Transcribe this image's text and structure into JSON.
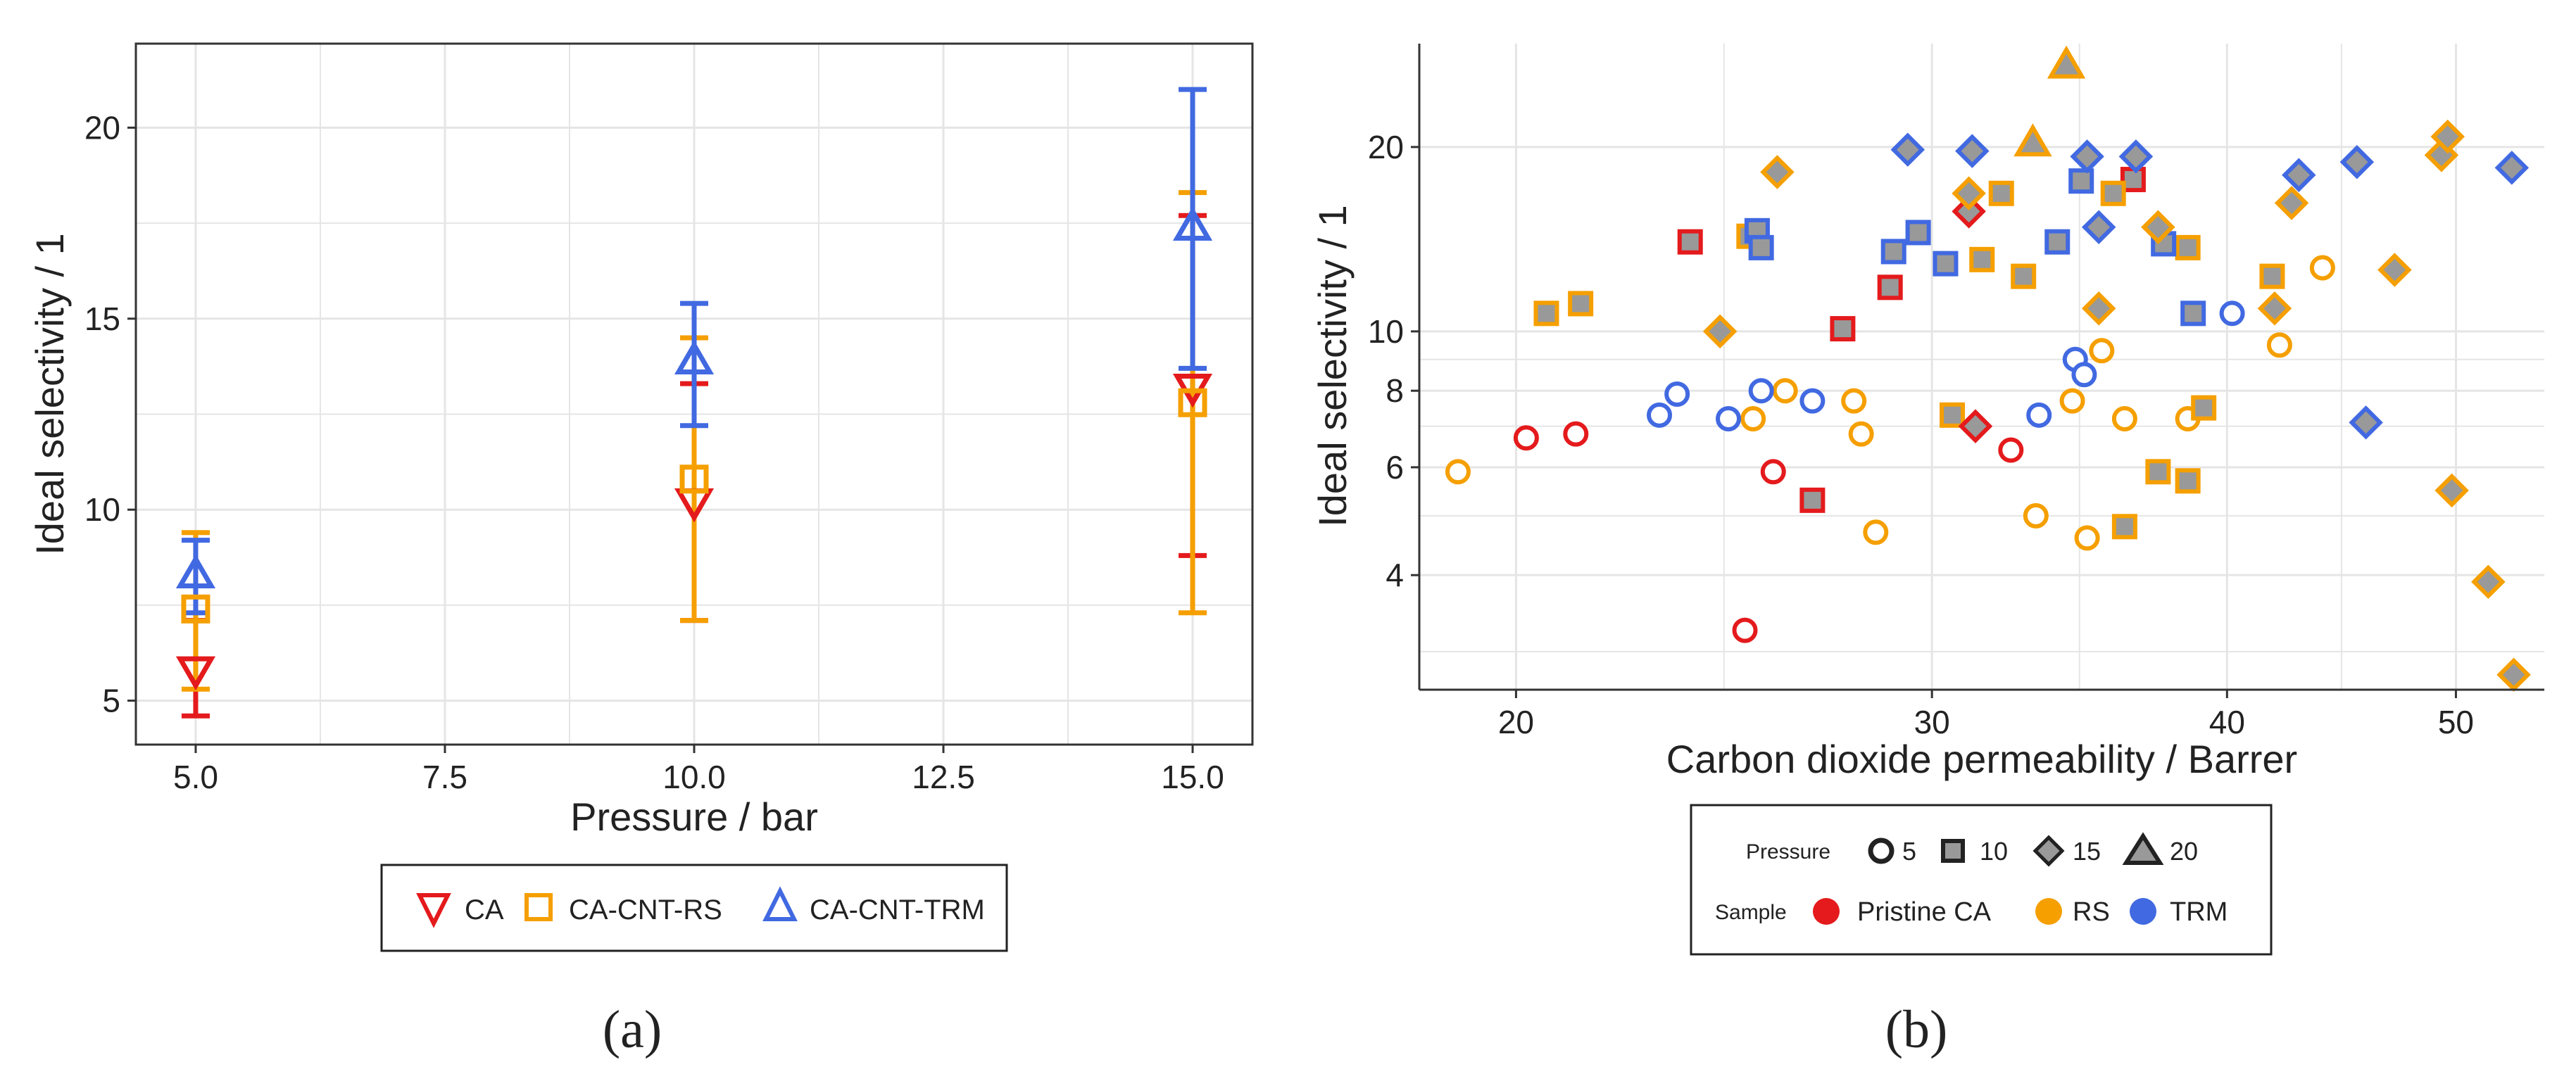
{
  "colors": {
    "CA": "#E41A1C",
    "RS": "#F59F00",
    "TRM": "#4169E1",
    "marker_fill": "#999999",
    "grid": "#e5e5e5",
    "axis_text": "#444444",
    "outline": "#222222"
  },
  "panel_labels": {
    "a": "(a)",
    "b": "(b)"
  },
  "chart_data": [
    {
      "type": "scatter",
      "xlabel": "Pressure / bar",
      "ylabel": "Ideal selectivity / 1",
      "xlim": [
        4.4,
        15.6
      ],
      "ylim": [
        3.85,
        22.2
      ],
      "xticks": [
        5.0,
        7.5,
        10.0,
        12.5,
        15.0
      ],
      "xtick_labels": [
        "5.0",
        "7.5",
        "10.0",
        "12.5",
        "15.0"
      ],
      "yticks": [
        5,
        10,
        15,
        20
      ],
      "ytick_labels": [
        "5",
        "10",
        "15",
        "20"
      ],
      "grid": true,
      "legend": {
        "position": "bottom",
        "entries": [
          {
            "label": "CA",
            "marker": "triangle-down",
            "color_key": "CA"
          },
          {
            "label": "CA-CNT-RS",
            "marker": "square",
            "color_key": "RS"
          },
          {
            "label": "CA-CNT-TRM",
            "marker": "triangle-up",
            "color_key": "TRM"
          }
        ]
      },
      "series": [
        {
          "name": "CA",
          "color_key": "CA",
          "marker": "triangle-down",
          "points": [
            {
              "x": 5,
              "y": 5.8,
              "ymin": 4.6,
              "ymax": 7.1
            },
            {
              "x": 10,
              "y": 10.2,
              "ymin": 7.1,
              "ymax": 13.3
            },
            {
              "x": 15,
              "y": 13.2,
              "ymin": 8.8,
              "ymax": 17.7
            }
          ]
        },
        {
          "name": "CA-CNT-RS",
          "color_key": "RS",
          "marker": "square",
          "points": [
            {
              "x": 5,
              "y": 7.4,
              "ymin": 5.3,
              "ymax": 9.4
            },
            {
              "x": 10,
              "y": 10.8,
              "ymin": 7.1,
              "ymax": 14.5
            },
            {
              "x": 15,
              "y": 12.8,
              "ymin": 7.3,
              "ymax": 18.3
            }
          ]
        },
        {
          "name": "CA-CNT-TRM",
          "color_key": "TRM",
          "marker": "triangle-up",
          "points": [
            {
              "x": 5,
              "y": 8.3,
              "ymin": 7.3,
              "ymax": 9.2
            },
            {
              "x": 10,
              "y": 13.9,
              "ymin": 12.2,
              "ymax": 15.4
            },
            {
              "x": 15,
              "y": 17.4,
              "ymin": 13.7,
              "ymax": 21.0
            }
          ]
        }
      ]
    },
    {
      "type": "scatter",
      "xscale": "log",
      "yscale": "log",
      "xlabel": "Carbon dioxide permeability / Barrer",
      "ylabel": "Ideal selectivity / 1",
      "xlim": [
        18.2,
        54.5
      ],
      "ylim": [
        2.6,
        29.5
      ],
      "xticks": [
        20,
        30,
        40,
        50
      ],
      "xtick_labels": [
        "20",
        "30",
        "40",
        "50"
      ],
      "yticks": [
        4,
        6,
        8,
        10,
        20
      ],
      "ytick_labels": [
        "4",
        "6",
        "8",
        "10",
        "20"
      ],
      "minor_yticks": [
        3,
        5,
        7,
        9
      ],
      "grid": true,
      "legend": {
        "position": "bottom",
        "pressure_title": "Pressure",
        "pressure_entries": [
          {
            "label": "5",
            "shape": "circle"
          },
          {
            "label": "10",
            "shape": "square"
          },
          {
            "label": "15",
            "shape": "diamond"
          },
          {
            "label": "20",
            "shape": "triangle"
          }
        ],
        "sample_title": "Sample",
        "sample_entries": [
          {
            "label": "Pristine CA",
            "color_key": "CA"
          },
          {
            "label": "RS",
            "color_key": "RS"
          },
          {
            "label": "TRM",
            "color_key": "TRM"
          }
        ]
      },
      "series": [
        {
          "name": "Pristine CA / 5 bar",
          "sample": "CA",
          "pressure": 5,
          "points": [
            [
              20.2,
              6.7
            ],
            [
              21.2,
              6.8
            ],
            [
              25.7,
              5.9
            ],
            [
              25.0,
              3.25
            ],
            [
              32.4,
              6.4
            ]
          ]
        },
        {
          "name": "Pristine CA / 10 bar",
          "sample": "CA",
          "pressure": 10,
          "points": [
            [
              23.7,
              14.0
            ],
            [
              26.7,
              5.3
            ],
            [
              27.5,
              10.1
            ],
            [
              28.8,
              11.8
            ],
            [
              36.5,
              17.7
            ]
          ]
        },
        {
          "name": "Pristine CA / 15 bar",
          "sample": "CA",
          "pressure": 15,
          "points": [
            [
              31.1,
              15.7
            ],
            [
              31.3,
              7.0
            ]
          ]
        },
        {
          "name": "RS / 5 bar",
          "sample": "RS",
          "pressure": 5,
          "points": [
            [
              18.9,
              5.9
            ],
            [
              25.2,
              7.2
            ],
            [
              26.0,
              8.0
            ],
            [
              27.8,
              7.7
            ],
            [
              28.0,
              6.8
            ],
            [
              28.4,
              4.7
            ],
            [
              33.2,
              5.0
            ],
            [
              34.4,
              7.7
            ],
            [
              34.9,
              4.6
            ],
            [
              35.4,
              9.3
            ],
            [
              36.2,
              7.2
            ],
            [
              38.5,
              7.2
            ],
            [
              42.1,
              9.5
            ],
            [
              43.9,
              12.7
            ]
          ]
        },
        {
          "name": "RS / 10 bar",
          "sample": "RS",
          "pressure": 10,
          "points": [
            [
              20.6,
              10.7
            ],
            [
              21.3,
              11.1
            ],
            [
              25.1,
              14.3
            ],
            [
              30.6,
              7.3
            ],
            [
              31.5,
              13.1
            ],
            [
              32.1,
              16.8
            ],
            [
              32.8,
              12.3
            ],
            [
              35.8,
              16.8
            ],
            [
              36.2,
              4.8
            ],
            [
              37.4,
              5.9
            ],
            [
              38.5,
              13.7
            ],
            [
              38.5,
              5.7
            ],
            [
              39.1,
              7.5
            ],
            [
              41.8,
              12.3
            ]
          ]
        },
        {
          "name": "RS / 15 bar",
          "sample": "RS",
          "pressure": 15,
          "points": [
            [
              24.4,
              10.0
            ],
            [
              25.8,
              18.2
            ],
            [
              31.1,
              16.8
            ],
            [
              35.3,
              10.9
            ],
            [
              37.4,
              14.8
            ],
            [
              41.9,
              10.9
            ],
            [
              42.6,
              16.2
            ],
            [
              47.1,
              12.6
            ],
            [
              49.3,
              19.4
            ],
            [
              49.6,
              20.8
            ],
            [
              49.8,
              5.5
            ],
            [
              51.6,
              3.9
            ],
            [
              52.9,
              2.75
            ]
          ]
        },
        {
          "name": "RS / 20 bar",
          "sample": "RS",
          "pressure": 20,
          "points": [
            [
              33.1,
              20.3
            ],
            [
              34.2,
              27.2
            ]
          ]
        },
        {
          "name": "TRM / 5 bar",
          "sample": "TRM",
          "pressure": 5,
          "points": [
            [
              23.0,
              7.3
            ],
            [
              23.4,
              7.9
            ],
            [
              24.6,
              7.2
            ],
            [
              25.4,
              8.0
            ],
            [
              26.7,
              7.7
            ],
            [
              33.3,
              7.3
            ],
            [
              34.5,
              9.0
            ],
            [
              34.8,
              8.5
            ],
            [
              40.2,
              10.7
            ]
          ]
        },
        {
          "name": "TRM / 10 bar",
          "sample": "TRM",
          "pressure": 10,
          "points": [
            [
              25.3,
              14.6
            ],
            [
              25.4,
              13.7
            ],
            [
              28.9,
              13.5
            ],
            [
              29.6,
              14.5
            ],
            [
              30.4,
              12.9
            ],
            [
              33.9,
              14.0
            ],
            [
              34.7,
              17.6
            ],
            [
              37.6,
              13.9
            ],
            [
              38.7,
              10.7
            ]
          ]
        },
        {
          "name": "TRM / 15 bar",
          "sample": "TRM",
          "pressure": 15,
          "points": [
            [
              29.3,
              19.8
            ],
            [
              31.2,
              19.7
            ],
            [
              34.9,
              19.3
            ],
            [
              35.3,
              14.8
            ],
            [
              36.6,
              19.3
            ],
            [
              42.9,
              18.0
            ],
            [
              45.4,
              18.9
            ],
            [
              45.8,
              7.1
            ],
            [
              52.8,
              18.5
            ]
          ]
        }
      ]
    }
  ]
}
